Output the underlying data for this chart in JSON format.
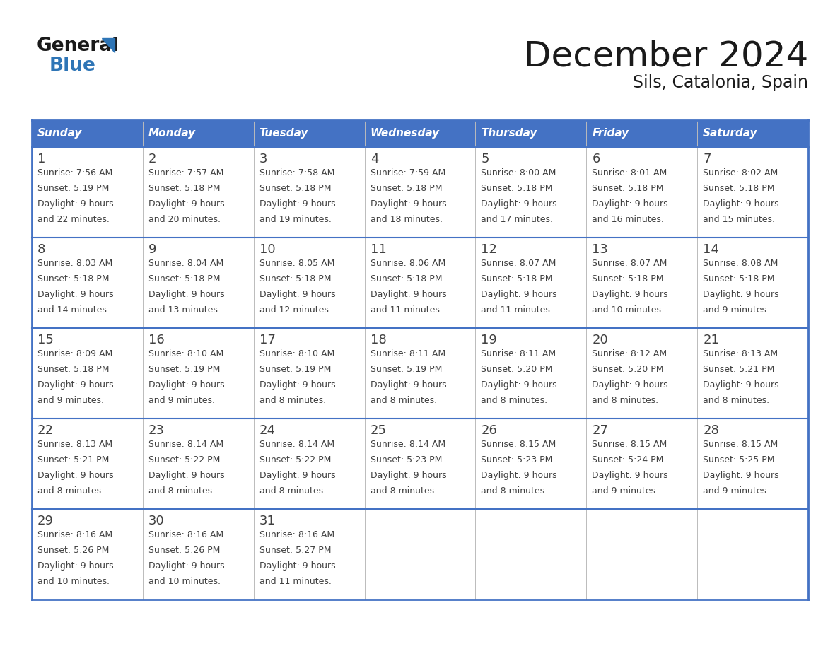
{
  "title": "December 2024",
  "subtitle": "Sils, Catalonia, Spain",
  "days_of_week": [
    "Sunday",
    "Monday",
    "Tuesday",
    "Wednesday",
    "Thursday",
    "Friday",
    "Saturday"
  ],
  "header_bg": "#4472C4",
  "header_text": "#FFFFFF",
  "cell_bg": "#FFFFFF",
  "border_color": "#4472C4",
  "divider_color": "#4472C4",
  "text_color": "#404040",
  "title_color": "#1a1a1a",
  "logo_general_color": "#1a1a1a",
  "logo_blue_color": "#2e75b6",
  "logo_triangle_color": "#2e75b6",
  "calendar_data": [
    {
      "week": 1,
      "days": [
        {
          "day": 1,
          "sunrise": "7:56 AM",
          "sunset": "5:19 PM",
          "daylight_hours": 9,
          "daylight_minutes": 22
        },
        {
          "day": 2,
          "sunrise": "7:57 AM",
          "sunset": "5:18 PM",
          "daylight_hours": 9,
          "daylight_minutes": 20
        },
        {
          "day": 3,
          "sunrise": "7:58 AM",
          "sunset": "5:18 PM",
          "daylight_hours": 9,
          "daylight_minutes": 19
        },
        {
          "day": 4,
          "sunrise": "7:59 AM",
          "sunset": "5:18 PM",
          "daylight_hours": 9,
          "daylight_minutes": 18
        },
        {
          "day": 5,
          "sunrise": "8:00 AM",
          "sunset": "5:18 PM",
          "daylight_hours": 9,
          "daylight_minutes": 17
        },
        {
          "day": 6,
          "sunrise": "8:01 AM",
          "sunset": "5:18 PM",
          "daylight_hours": 9,
          "daylight_minutes": 16
        },
        {
          "day": 7,
          "sunrise": "8:02 AM",
          "sunset": "5:18 PM",
          "daylight_hours": 9,
          "daylight_minutes": 15
        }
      ]
    },
    {
      "week": 2,
      "days": [
        {
          "day": 8,
          "sunrise": "8:03 AM",
          "sunset": "5:18 PM",
          "daylight_hours": 9,
          "daylight_minutes": 14
        },
        {
          "day": 9,
          "sunrise": "8:04 AM",
          "sunset": "5:18 PM",
          "daylight_hours": 9,
          "daylight_minutes": 13
        },
        {
          "day": 10,
          "sunrise": "8:05 AM",
          "sunset": "5:18 PM",
          "daylight_hours": 9,
          "daylight_minutes": 12
        },
        {
          "day": 11,
          "sunrise": "8:06 AM",
          "sunset": "5:18 PM",
          "daylight_hours": 9,
          "daylight_minutes": 11
        },
        {
          "day": 12,
          "sunrise": "8:07 AM",
          "sunset": "5:18 PM",
          "daylight_hours": 9,
          "daylight_minutes": 11
        },
        {
          "day": 13,
          "sunrise": "8:07 AM",
          "sunset": "5:18 PM",
          "daylight_hours": 9,
          "daylight_minutes": 10
        },
        {
          "day": 14,
          "sunrise": "8:08 AM",
          "sunset": "5:18 PM",
          "daylight_hours": 9,
          "daylight_minutes": 9
        }
      ]
    },
    {
      "week": 3,
      "days": [
        {
          "day": 15,
          "sunrise": "8:09 AM",
          "sunset": "5:18 PM",
          "daylight_hours": 9,
          "daylight_minutes": 9
        },
        {
          "day": 16,
          "sunrise": "8:10 AM",
          "sunset": "5:19 PM",
          "daylight_hours": 9,
          "daylight_minutes": 9
        },
        {
          "day": 17,
          "sunrise": "8:10 AM",
          "sunset": "5:19 PM",
          "daylight_hours": 9,
          "daylight_minutes": 8
        },
        {
          "day": 18,
          "sunrise": "8:11 AM",
          "sunset": "5:19 PM",
          "daylight_hours": 9,
          "daylight_minutes": 8
        },
        {
          "day": 19,
          "sunrise": "8:11 AM",
          "sunset": "5:20 PM",
          "daylight_hours": 9,
          "daylight_minutes": 8
        },
        {
          "day": 20,
          "sunrise": "8:12 AM",
          "sunset": "5:20 PM",
          "daylight_hours": 9,
          "daylight_minutes": 8
        },
        {
          "day": 21,
          "sunrise": "8:13 AM",
          "sunset": "5:21 PM",
          "daylight_hours": 9,
          "daylight_minutes": 8
        }
      ]
    },
    {
      "week": 4,
      "days": [
        {
          "day": 22,
          "sunrise": "8:13 AM",
          "sunset": "5:21 PM",
          "daylight_hours": 9,
          "daylight_minutes": 8
        },
        {
          "day": 23,
          "sunrise": "8:14 AM",
          "sunset": "5:22 PM",
          "daylight_hours": 9,
          "daylight_minutes": 8
        },
        {
          "day": 24,
          "sunrise": "8:14 AM",
          "sunset": "5:22 PM",
          "daylight_hours": 9,
          "daylight_minutes": 8
        },
        {
          "day": 25,
          "sunrise": "8:14 AM",
          "sunset": "5:23 PM",
          "daylight_hours": 9,
          "daylight_minutes": 8
        },
        {
          "day": 26,
          "sunrise": "8:15 AM",
          "sunset": "5:23 PM",
          "daylight_hours": 9,
          "daylight_minutes": 8
        },
        {
          "day": 27,
          "sunrise": "8:15 AM",
          "sunset": "5:24 PM",
          "daylight_hours": 9,
          "daylight_minutes": 9
        },
        {
          "day": 28,
          "sunrise": "8:15 AM",
          "sunset": "5:25 PM",
          "daylight_hours": 9,
          "daylight_minutes": 9
        }
      ]
    },
    {
      "week": 5,
      "days": [
        {
          "day": 29,
          "sunrise": "8:16 AM",
          "sunset": "5:26 PM",
          "daylight_hours": 9,
          "daylight_minutes": 10
        },
        {
          "day": 30,
          "sunrise": "8:16 AM",
          "sunset": "5:26 PM",
          "daylight_hours": 9,
          "daylight_minutes": 10
        },
        {
          "day": 31,
          "sunrise": "8:16 AM",
          "sunset": "5:27 PM",
          "daylight_hours": 9,
          "daylight_minutes": 11
        },
        null,
        null,
        null,
        null
      ]
    }
  ]
}
